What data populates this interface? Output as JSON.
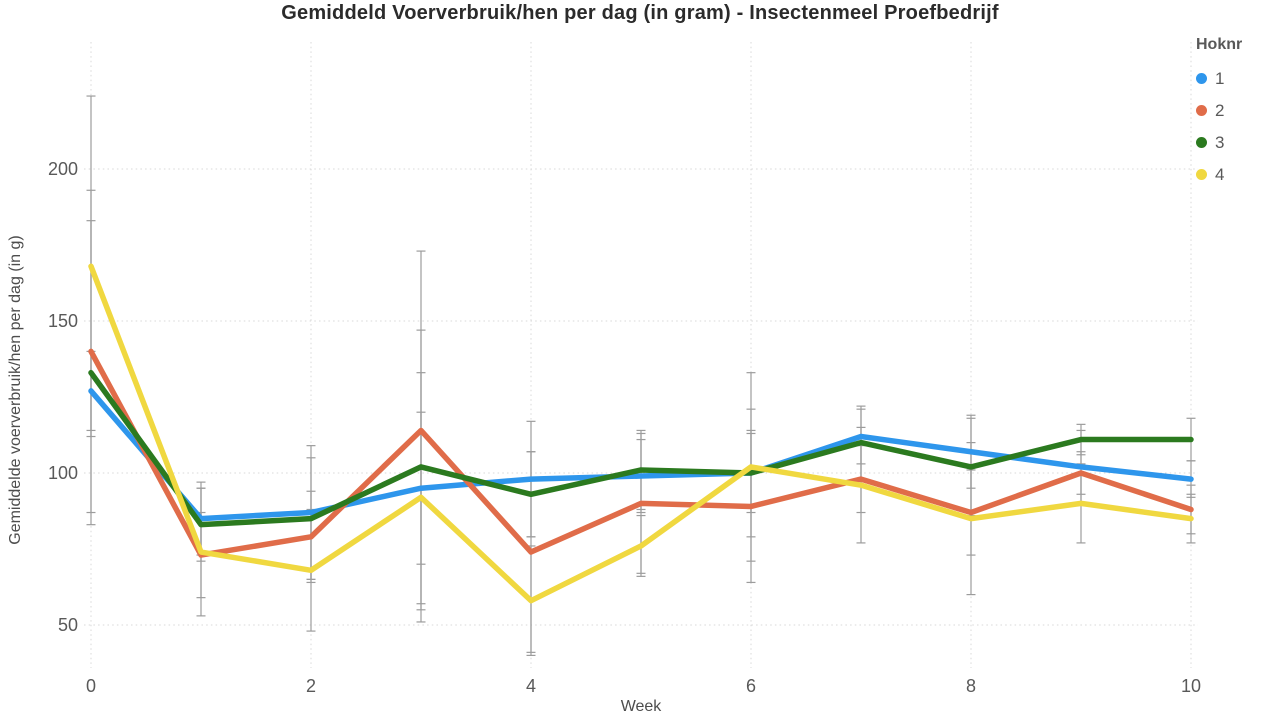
{
  "title": "Gemiddeld Voerverbruik/hen per dag (in gram) - Insectenmeel Proefbedrijf",
  "chart_data": {
    "type": "line",
    "title": "Gemiddeld Voerverbruik/hen per dag (in gram) - Insectenmeel Proefbedrijf",
    "xlabel": "Week",
    "ylabel": "Gemiddelde voerverbruik/hen per dag (in g)",
    "x": [
      0,
      1,
      2,
      3,
      4,
      5,
      6,
      7,
      8,
      9,
      10
    ],
    "xticks": [
      0,
      2,
      4,
      6,
      8,
      10
    ],
    "yticks": [
      50,
      100,
      150,
      200
    ],
    "ylim": [
      30,
      235
    ],
    "grid": "dotted",
    "legend_title": "Hoknr",
    "legend_position": "top-right",
    "error_bars": true,
    "series": [
      {
        "name": "1",
        "color": "#2E96EC",
        "values": [
          127,
          85,
          87,
          95,
          98,
          99,
          100,
          112,
          107,
          102,
          98
        ],
        "err": [
          13,
          12,
          22,
          25,
          19,
          12,
          21,
          9,
          12,
          12,
          6
        ]
      },
      {
        "name": "2",
        "color": "#E06C49",
        "values": [
          140,
          73,
          79,
          114,
          74,
          90,
          89,
          98,
          87,
          100,
          88
        ],
        "err": [
          53,
          14,
          15,
          59,
          33,
          23,
          25,
          11,
          14,
          7,
          8
        ]
      },
      {
        "name": "3",
        "color": "#2B7A1F",
        "values": [
          133,
          83,
          85,
          102,
          93,
          101,
          100,
          110,
          102,
          111,
          111
        ],
        "err": [
          50,
          12,
          20,
          45,
          14,
          13,
          13,
          12,
          16,
          5,
          7
        ]
      },
      {
        "name": "4",
        "color": "#F0D840",
        "values": [
          168,
          74,
          68,
          92,
          58,
          76,
          102,
          96,
          85,
          90,
          85
        ],
        "err": [
          56,
          21,
          20,
          41,
          18,
          10,
          31,
          19,
          25,
          13,
          8
        ]
      }
    ],
    "colors": {
      "grid": "#d8d8d8",
      "error_bar": "#9c9c9c",
      "tick_text": "#595959",
      "title_text": "#2b2b2b",
      "axis_title_text": "#4d4d4d"
    }
  }
}
